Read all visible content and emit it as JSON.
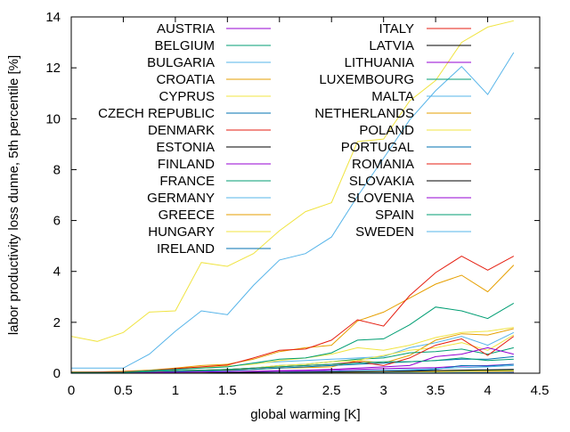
{
  "chart_data": {
    "type": "line",
    "title": "",
    "xlabel": "global warming [K]",
    "ylabel": "labor productivity loss dunne, 5th percentile [%]",
    "xlim": [
      0,
      4.5
    ],
    "ylim": [
      0,
      14
    ],
    "x_ticks": [
      0,
      0.5,
      1,
      1.5,
      2,
      2.5,
      3,
      3.5,
      4,
      4.5
    ],
    "y_ticks": [
      0,
      2,
      4,
      6,
      8,
      10,
      12,
      14
    ],
    "x_tick_labels": [
      "0",
      "0.5",
      "1",
      "1.5",
      "2",
      "2.5",
      "3",
      "3.5",
      "4",
      "4.5"
    ],
    "y_tick_labels": [
      "0",
      "2",
      "4",
      "6",
      "8",
      "10",
      "12",
      "14"
    ],
    "grid": false,
    "legend_position": "inside-top, two columns",
    "x": [
      0,
      0.25,
      0.5,
      0.75,
      1,
      1.25,
      1.5,
      1.75,
      2,
      2.25,
      2.5,
      2.75,
      3,
      3.25,
      3.5,
      3.75,
      4,
      4.25
    ],
    "series": [
      {
        "name": "AUSTRIA",
        "color": "#9400d3",
        "values": [
          0.01,
          0.01,
          0.01,
          0.02,
          0.03,
          0.04,
          0.05,
          0.06,
          0.08,
          0.09,
          0.11,
          0.15,
          0.18,
          0.2,
          0.22,
          0.28,
          0.3,
          0.35
        ]
      },
      {
        "name": "BELGIUM",
        "color": "#009e73",
        "values": [
          0,
          0,
          0,
          0.01,
          0.01,
          0.01,
          0.02,
          0.02,
          0.03,
          0.03,
          0.04,
          0.05,
          0.06,
          0.07,
          0.08,
          0.1,
          0.11,
          0.13
        ]
      },
      {
        "name": "BULGARIA",
        "color": "#56b4e9",
        "values": [
          0.02,
          0.02,
          0.03,
          0.08,
          0.15,
          0.2,
          0.25,
          0.4,
          0.45,
          0.5,
          0.55,
          0.6,
          0.65,
          1.0,
          1.2,
          1.45,
          1.1,
          1.6
        ]
      },
      {
        "name": "CROATIA",
        "color": "#e69f00",
        "values": [
          0.01,
          0.01,
          0.02,
          0.05,
          0.08,
          0.1,
          0.12,
          0.15,
          0.2,
          0.22,
          0.25,
          0.5,
          0.4,
          0.7,
          1.3,
          1.55,
          1.5,
          1.75
        ]
      },
      {
        "name": "CYPRUS",
        "color": "#f0e442",
        "values": [
          0.05,
          0.05,
          0.08,
          0.12,
          0.18,
          0.22,
          0.28,
          0.35,
          0.5,
          0.6,
          0.75,
          1.0,
          0.9,
          1.1,
          1.4,
          1.6,
          1.65,
          1.8
        ]
      },
      {
        "name": "CZECH REPUBLIC",
        "color": "#0072b2",
        "values": [
          0,
          0,
          0,
          0.01,
          0.01,
          0.01,
          0.02,
          0.02,
          0.03,
          0.04,
          0.05,
          0.06,
          0.07,
          0.1,
          0.15,
          0.3,
          0.28,
          0.35
        ]
      },
      {
        "name": "DENMARK",
        "color": "#e51e10",
        "values": [
          0,
          0,
          0,
          0,
          0,
          0,
          0,
          0.01,
          0.01,
          0.01,
          0.02,
          0.02,
          0.03,
          0.03,
          0.04,
          0.05,
          0.05,
          0.06
        ]
      },
      {
        "name": "ESTONIA",
        "color": "#000000",
        "values": [
          0,
          0,
          0,
          0,
          0,
          0,
          0,
          0,
          0.01,
          0.01,
          0.01,
          0.01,
          0.02,
          0.02,
          0.02,
          0.03,
          0.03,
          0.04
        ]
      },
      {
        "name": "FINLAND",
        "color": "#9400d3",
        "values": [
          0,
          0,
          0,
          0,
          0,
          0,
          0,
          0,
          0,
          0.01,
          0.01,
          0.01,
          0.01,
          0.02,
          0.02,
          0.03,
          0.03,
          0.03
        ]
      },
      {
        "name": "FRANCE",
        "color": "#009e73",
        "values": [
          0.01,
          0.01,
          0.02,
          0.04,
          0.07,
          0.1,
          0.15,
          0.2,
          0.3,
          0.35,
          0.45,
          0.55,
          0.6,
          0.8,
          0.85,
          0.95,
          0.75,
          1.0
        ]
      },
      {
        "name": "GERMANY",
        "color": "#56b4e9",
        "values": [
          0,
          0,
          0,
          0.01,
          0.01,
          0.02,
          0.03,
          0.04,
          0.05,
          0.06,
          0.08,
          0.1,
          0.12,
          0.15,
          0.18,
          0.22,
          0.25,
          0.3
        ]
      },
      {
        "name": "GREECE",
        "color": "#e69f00",
        "values": [
          0.05,
          0.05,
          0.07,
          0.12,
          0.2,
          0.3,
          0.35,
          0.55,
          0.85,
          1.0,
          1.1,
          2.05,
          2.4,
          2.95,
          3.5,
          3.85,
          3.2,
          4.25
        ]
      },
      {
        "name": "HUNGARY",
        "color": "#f0e442",
        "values": [
          0.02,
          0.02,
          0.03,
          0.05,
          0.1,
          0.12,
          0.15,
          0.2,
          0.3,
          0.35,
          0.45,
          0.5,
          0.7,
          0.9,
          1.0,
          1.2,
          0.9,
          1.5
        ]
      },
      {
        "name": "IRELAND",
        "color": "#0072b2",
        "values": [
          0,
          0,
          0,
          0,
          0,
          0,
          0,
          0,
          0,
          0,
          0,
          0,
          0.01,
          0.01,
          0.01,
          0.01,
          0.02,
          0.02
        ]
      },
      {
        "name": "ITALY",
        "color": "#e51e10",
        "values": [
          0.04,
          0.05,
          0.06,
          0.1,
          0.18,
          0.25,
          0.32,
          0.6,
          0.9,
          0.95,
          1.3,
          2.1,
          1.85,
          3.05,
          3.95,
          4.6,
          4.05,
          4.6
        ]
      },
      {
        "name": "LATVIA",
        "color": "#000000",
        "values": [
          0,
          0,
          0,
          0,
          0,
          0,
          0,
          0,
          0,
          0.01,
          0.01,
          0.01,
          0.01,
          0.02,
          0.02,
          0.02,
          0.03,
          0.03
        ]
      },
      {
        "name": "LITHUANIA",
        "color": "#9400d3",
        "values": [
          0,
          0,
          0,
          0,
          0,
          0,
          0,
          0.01,
          0.01,
          0.01,
          0.01,
          0.02,
          0.02,
          0.02,
          0.03,
          0.03,
          0.04,
          0.04
        ]
      },
      {
        "name": "LUXEMBOURG",
        "color": "#009e73",
        "values": [
          0.03,
          0.03,
          0.04,
          0.1,
          0.15,
          0.2,
          0.25,
          0.4,
          0.55,
          0.6,
          0.8,
          1.3,
          1.35,
          1.9,
          2.6,
          2.45,
          2.15,
          2.75
        ]
      },
      {
        "name": "MALTA",
        "color": "#56b4e9",
        "values": [
          0.2,
          0.2,
          0.2,
          0.75,
          1.65,
          2.45,
          2.3,
          3.45,
          4.45,
          4.7,
          5.35,
          6.95,
          8.45,
          9.95,
          11.1,
          12.05,
          10.95,
          12.6
        ]
      },
      {
        "name": "NETHERLANDS",
        "color": "#e69f00",
        "values": [
          0,
          0,
          0,
          0,
          0.01,
          0.01,
          0.01,
          0.02,
          0.02,
          0.02,
          0.03,
          0.03,
          0.04,
          0.05,
          0.05,
          0.06,
          0.07,
          0.08
        ]
      },
      {
        "name": "POLAND",
        "color": "#f0e442",
        "values": [
          0,
          0,
          0,
          0.01,
          0.01,
          0.01,
          0.02,
          0.02,
          0.03,
          0.03,
          0.04,
          0.05,
          0.05,
          0.06,
          0.07,
          0.08,
          0.09,
          0.1
        ]
      },
      {
        "name": "PORTUGAL",
        "color": "#0072b2",
        "values": [
          0.01,
          0.01,
          0.02,
          0.04,
          0.06,
          0.08,
          0.1,
          0.15,
          0.2,
          0.25,
          0.3,
          0.35,
          0.4,
          0.45,
          0.5,
          0.55,
          0.55,
          0.65
        ]
      },
      {
        "name": "ROMANIA",
        "color": "#e51e10",
        "values": [
          0.02,
          0.02,
          0.03,
          0.06,
          0.1,
          0.12,
          0.15,
          0.2,
          0.25,
          0.3,
          0.35,
          0.45,
          0.3,
          0.6,
          1.1,
          1.35,
          0.7,
          1.45
        ]
      },
      {
        "name": "SLOVAKIA",
        "color": "#000000",
        "values": [
          0,
          0,
          0,
          0.01,
          0.01,
          0.01,
          0.02,
          0.03,
          0.03,
          0.04,
          0.05,
          0.06,
          0.07,
          0.08,
          0.1,
          0.12,
          0.13,
          0.15
        ]
      },
      {
        "name": "SLOVENIA",
        "color": "#9400d3",
        "values": [
          0.01,
          0.01,
          0.01,
          0.03,
          0.04,
          0.05,
          0.06,
          0.08,
          0.1,
          0.12,
          0.15,
          0.2,
          0.25,
          0.3,
          0.65,
          0.75,
          1.0,
          0.75
        ]
      },
      {
        "name": "SPAIN",
        "color": "#009e73",
        "values": [
          0.02,
          0.02,
          0.03,
          0.06,
          0.1,
          0.12,
          0.15,
          0.2,
          0.25,
          0.3,
          0.35,
          0.4,
          0.45,
          0.45,
          0.5,
          0.6,
          0.5,
          0.55
        ]
      },
      {
        "name": "SWEDEN",
        "color": "#56b4e9",
        "values": [
          0,
          0,
          0,
          0,
          0,
          0,
          0,
          0,
          0.01,
          0.01,
          0.01,
          0.01,
          0.02,
          0.02,
          0.02,
          0.03,
          0.03,
          0.04
        ]
      },
      {
        "name": "",
        "color": "#f0e442",
        "values": [
          1.45,
          1.25,
          1.6,
          2.4,
          2.45,
          4.35,
          4.2,
          4.7,
          5.6,
          6.35,
          6.7,
          9.1,
          9.2,
          10.7,
          11.5,
          13.0,
          13.6,
          13.85
        ]
      }
    ]
  }
}
